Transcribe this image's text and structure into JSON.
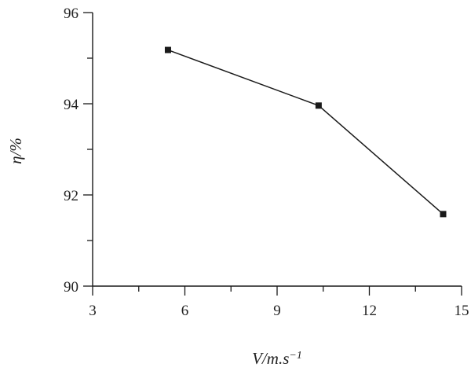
{
  "chart_data": {
    "type": "line",
    "xlabel": "V/m.s",
    "xlabel_superscript": "−1",
    "ylabel": "η/%",
    "xlim": [
      3,
      15
    ],
    "ylim": [
      90,
      96
    ],
    "xticks": [
      3,
      6,
      9,
      12,
      15
    ],
    "yticks": [
      90,
      92,
      94,
      96
    ],
    "grid": false,
    "legend": "none",
    "series": [
      {
        "marker": "square",
        "color": "#1a1a1a",
        "x": [
          5.45,
          10.35,
          14.4
        ],
        "y": [
          95.18,
          93.96,
          91.58
        ]
      }
    ]
  }
}
